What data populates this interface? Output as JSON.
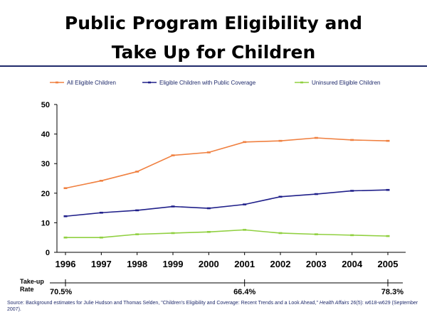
{
  "title": {
    "line1": "Public Program Eligibility and",
    "line2": "Take Up for Children"
  },
  "chart_data": {
    "type": "line",
    "x": [
      "1996",
      "1997",
      "1998",
      "1999",
      "2000",
      "2001",
      "2002",
      "2003",
      "2004",
      "2005"
    ],
    "ylim": [
      0,
      50
    ],
    "yticks": [
      0,
      10,
      20,
      30,
      40,
      50
    ],
    "legend_position": "top",
    "grid": false,
    "series": [
      {
        "name": "All Eligible Children",
        "color": "#f08040",
        "values": [
          21.7,
          24.2,
          27.3,
          32.8,
          33.8,
          37.3,
          37.7,
          38.7,
          38.0,
          37.7
        ]
      },
      {
        "name": "Eligible Children with Public Coverage",
        "color": "#20208a",
        "values": [
          12.2,
          13.4,
          14.2,
          15.5,
          14.9,
          16.2,
          18.8,
          19.7,
          20.8,
          21.1
        ]
      },
      {
        "name": "Uninsured Eligible Children",
        "color": "#90d040",
        "values": [
          5.0,
          5.0,
          6.1,
          6.5,
          6.9,
          7.6,
          6.5,
          6.1,
          5.8,
          5.5
        ]
      }
    ],
    "takeup": {
      "label_line1": "Take-up",
      "label_line2": "Rate",
      "points": [
        {
          "year": "1996",
          "value": "70.5%"
        },
        {
          "year": "2001",
          "value": "66.4%"
        },
        {
          "year": "2005",
          "value": "78.3%"
        }
      ]
    }
  },
  "source": {
    "prefix": "Source: Background estimates for Julie Hudson and Thomas Selden, \"Children's Eligibility and Coverage: Recent Trends and a Look Ahead,\" ",
    "journal": "Health Affairs",
    "suffix": " 26(5): w618-w629 (September 2007)."
  }
}
